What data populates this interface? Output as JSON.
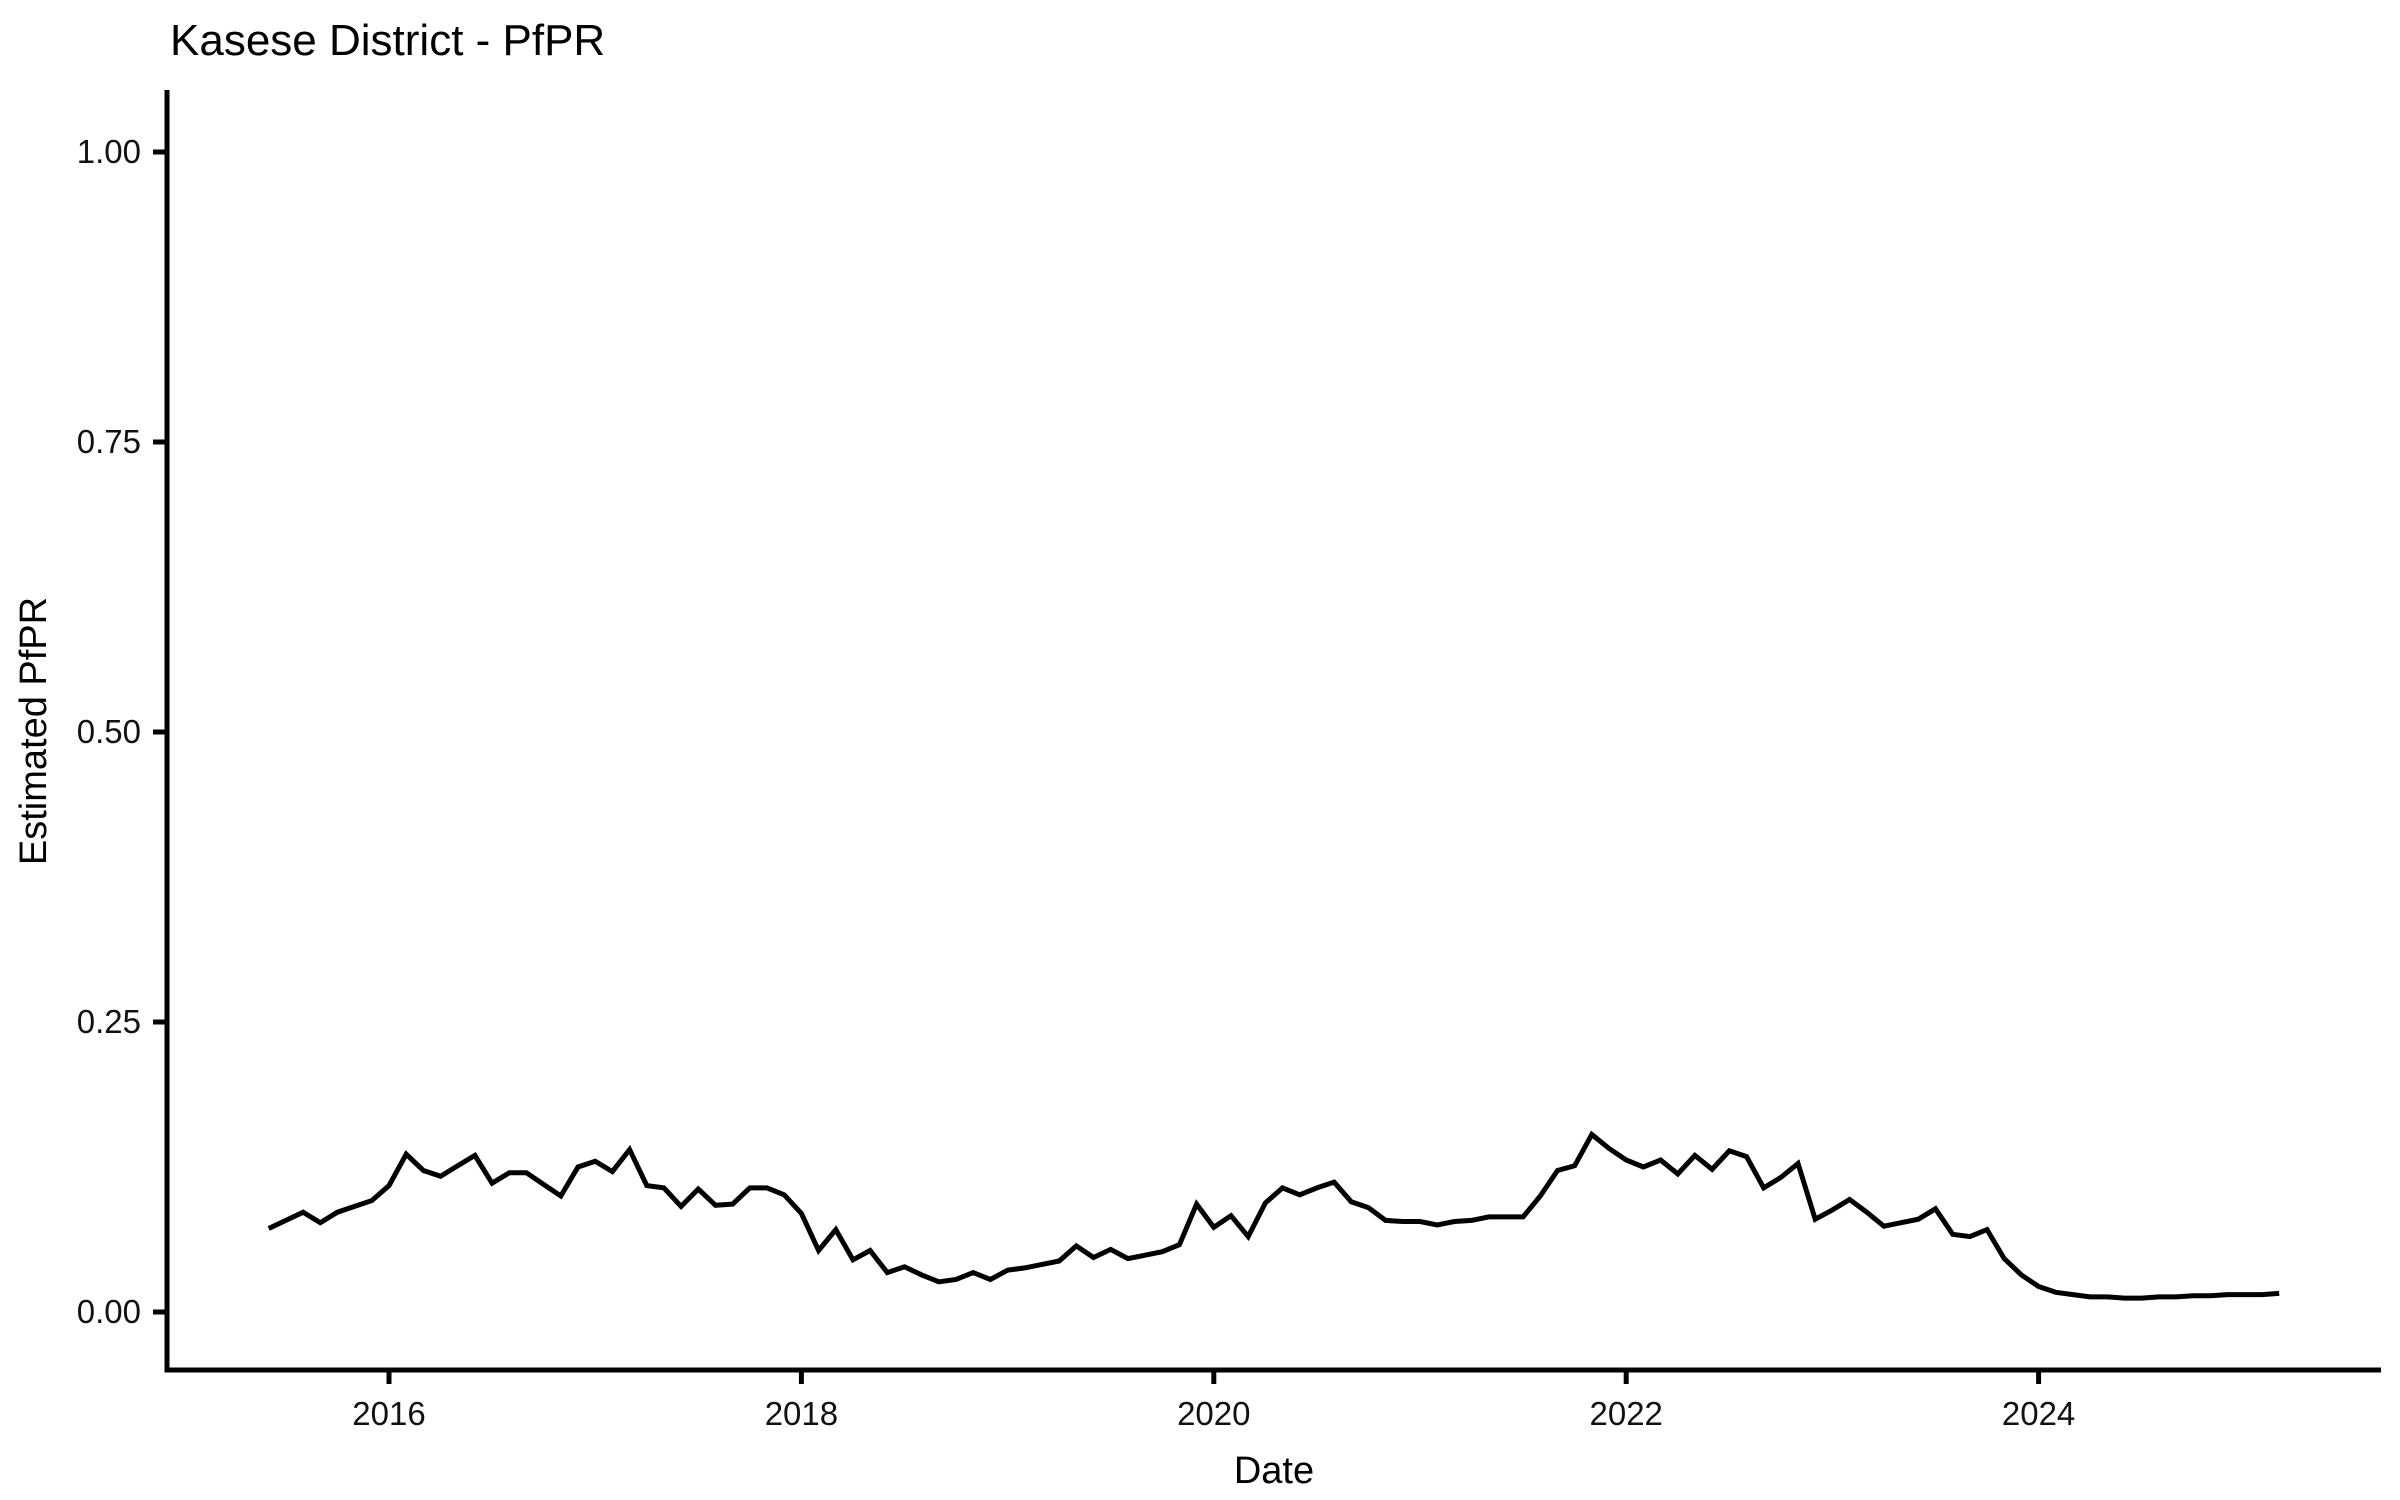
{
  "chart_data": {
    "type": "line",
    "title": "Kasese District - PfPR",
    "xlabel": "Date",
    "ylabel": "Estimated PfPR",
    "background_color": "#FFFFFF",
    "line_color": "#000000",
    "grid": false,
    "legend_position": "none",
    "ylim": [
      0.0,
      1.05
    ],
    "y_ticks": [
      {
        "value": 0.0,
        "label": "0.00"
      },
      {
        "value": 0.25,
        "label": "0.25"
      },
      {
        "value": 0.5,
        "label": "0.50"
      },
      {
        "value": 0.75,
        "label": "0.75"
      },
      {
        "value": 1.0,
        "label": "1.00"
      }
    ],
    "x_ticks": [
      {
        "year": 2016,
        "label": "2016"
      },
      {
        "year": 2018,
        "label": "2018"
      },
      {
        "year": 2020,
        "label": "2020"
      },
      {
        "year": 2022,
        "label": "2022"
      },
      {
        "year": 2024,
        "label": "2024"
      }
    ],
    "series": [
      {
        "name": "Estimated PfPR",
        "dates": [
          "2015-06",
          "2015-07",
          "2015-08",
          "2015-09",
          "2015-10",
          "2015-11",
          "2015-12",
          "2016-01",
          "2016-02",
          "2016-03",
          "2016-04",
          "2016-05",
          "2016-06",
          "2016-07",
          "2016-08",
          "2016-09",
          "2016-10",
          "2016-11",
          "2016-12",
          "2017-01",
          "2017-02",
          "2017-03",
          "2017-04",
          "2017-05",
          "2017-06",
          "2017-07",
          "2017-08",
          "2017-09",
          "2017-10",
          "2017-11",
          "2017-12",
          "2018-01",
          "2018-02",
          "2018-03",
          "2018-04",
          "2018-05",
          "2018-06",
          "2018-07",
          "2018-08",
          "2018-09",
          "2018-10",
          "2018-11",
          "2018-12",
          "2019-01",
          "2019-02",
          "2019-03",
          "2019-04",
          "2019-05",
          "2019-06",
          "2019-07",
          "2019-08",
          "2019-09",
          "2019-10",
          "2019-11",
          "2019-12",
          "2020-01",
          "2020-02",
          "2020-03",
          "2020-04",
          "2020-05",
          "2020-06",
          "2020-07",
          "2020-08",
          "2020-09",
          "2020-10",
          "2020-11",
          "2020-12",
          "2021-01",
          "2021-02",
          "2021-03",
          "2021-04",
          "2021-05",
          "2021-06",
          "2021-07",
          "2021-08",
          "2021-09",
          "2021-10",
          "2021-11",
          "2021-12",
          "2022-01",
          "2022-02",
          "2022-03",
          "2022-04",
          "2022-05",
          "2022-06",
          "2022-07",
          "2022-08",
          "2022-09",
          "2022-10",
          "2022-11",
          "2022-12",
          "2023-01",
          "2023-02",
          "2023-03",
          "2023-04",
          "2023-05",
          "2023-06",
          "2023-07",
          "2023-08",
          "2023-09",
          "2023-10",
          "2023-11",
          "2023-12",
          "2024-01",
          "2024-02",
          "2024-03",
          "2024-04",
          "2024-05",
          "2024-06",
          "2024-07",
          "2024-08",
          "2024-09",
          "2024-10",
          "2024-11",
          "2024-12",
          "2025-01",
          "2025-02",
          "2025-03"
        ],
        "values": [
          0.072,
          0.079,
          0.086,
          0.077,
          0.086,
          0.091,
          0.096,
          0.109,
          0.136,
          0.122,
          0.117,
          0.126,
          0.135,
          0.111,
          0.12,
          0.12,
          0.11,
          0.1,
          0.125,
          0.13,
          0.121,
          0.14,
          0.109,
          0.107,
          0.091,
          0.106,
          0.092,
          0.093,
          0.107,
          0.107,
          0.101,
          0.085,
          0.053,
          0.071,
          0.045,
          0.053,
          0.034,
          0.039,
          0.032,
          0.026,
          0.028,
          0.034,
          0.028,
          0.036,
          0.038,
          0.041,
          0.044,
          0.057,
          0.047,
          0.054,
          0.046,
          0.049,
          0.052,
          0.058,
          0.093,
          0.073,
          0.083,
          0.065,
          0.094,
          0.107,
          0.101,
          0.107,
          0.112,
          0.095,
          0.09,
          0.079,
          0.078,
          0.078,
          0.075,
          0.078,
          0.079,
          0.082,
          0.082,
          0.082,
          0.1,
          0.122,
          0.126,
          0.153,
          0.141,
          0.131,
          0.125,
          0.131,
          0.119,
          0.135,
          0.123,
          0.139,
          0.134,
          0.107,
          0.116,
          0.128,
          0.08,
          0.088,
          0.097,
          0.086,
          0.074,
          0.077,
          0.08,
          0.089,
          0.067,
          0.065,
          0.071,
          0.046,
          0.032,
          0.022,
          0.017,
          0.015,
          0.013,
          0.013,
          0.012,
          0.012,
          0.013,
          0.013,
          0.014,
          0.014,
          0.015,
          0.015,
          0.015,
          0.016
        ]
      }
    ]
  }
}
